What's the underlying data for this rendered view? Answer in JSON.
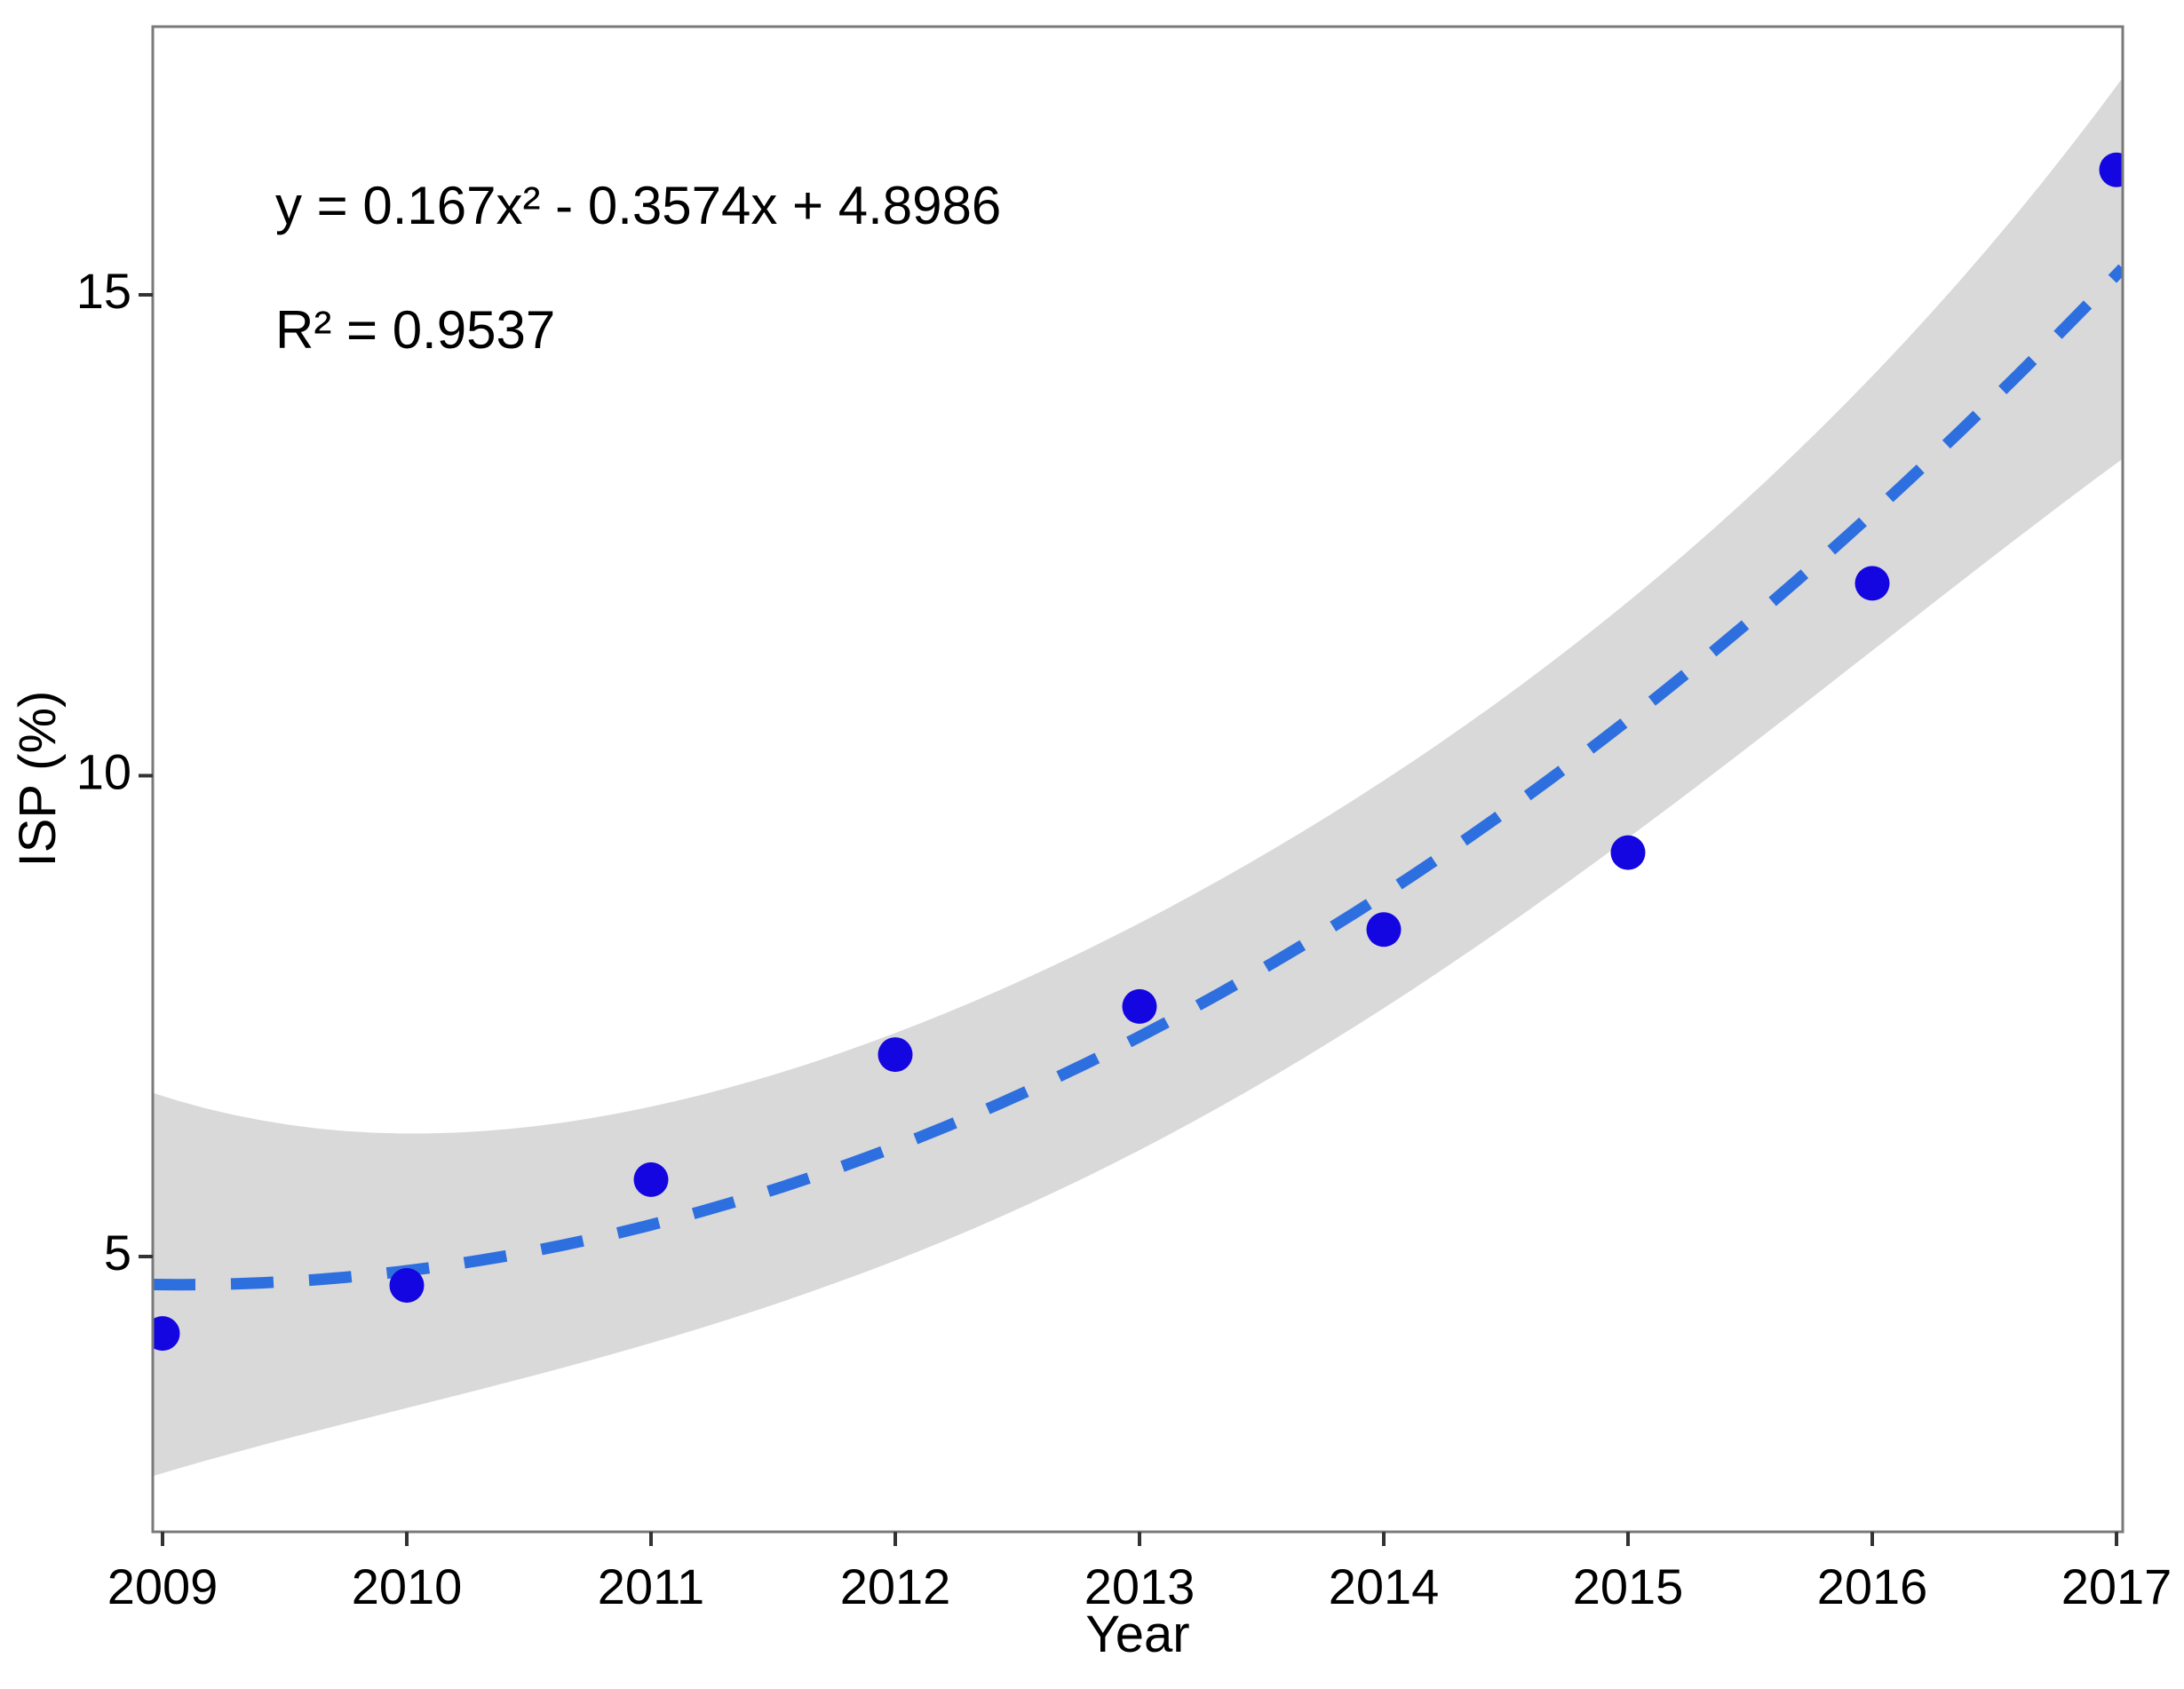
{
  "chart_data": {
    "type": "scatter",
    "title": "",
    "xlabel": "Year",
    "ylabel": "ISP (%)",
    "annotations": {
      "equation": "y = 0.167x² - 0.3574x + 4.8986",
      "r_squared": "R² = 0.9537"
    },
    "categories": [
      2009,
      2010,
      2011,
      2012,
      2013,
      2014,
      2015,
      2016,
      2017
    ],
    "series": [
      {
        "name": "ISP (%)",
        "values": [
          4.2,
          4.7,
          5.8,
          7.1,
          7.6,
          8.4,
          9.2,
          12.0,
          16.3
        ]
      }
    ],
    "yticks": [
      5,
      10,
      15
    ],
    "ylim": [
      2.1,
      17.8
    ],
    "xlim": [
      2008.96,
      2017.03
    ],
    "grid": false,
    "legend": "none",
    "trendline": {
      "type": "quadratic",
      "style": "dashed",
      "a": 0.167,
      "b": -0.3574,
      "c": 4.8986,
      "x_transform": "t = year - 2008"
    },
    "confidence_band": {
      "shape": "trend ± (base + k*|t-5|^power)",
      "base": 1.18,
      "k": 0.00305,
      "power": 4
    },
    "colors": {
      "point": "#1406e0",
      "trend": "#2e6fe0",
      "band": "#d9d9d9",
      "axis": "#7a7a7a",
      "tick": "#333333",
      "text": "#000000"
    }
  }
}
